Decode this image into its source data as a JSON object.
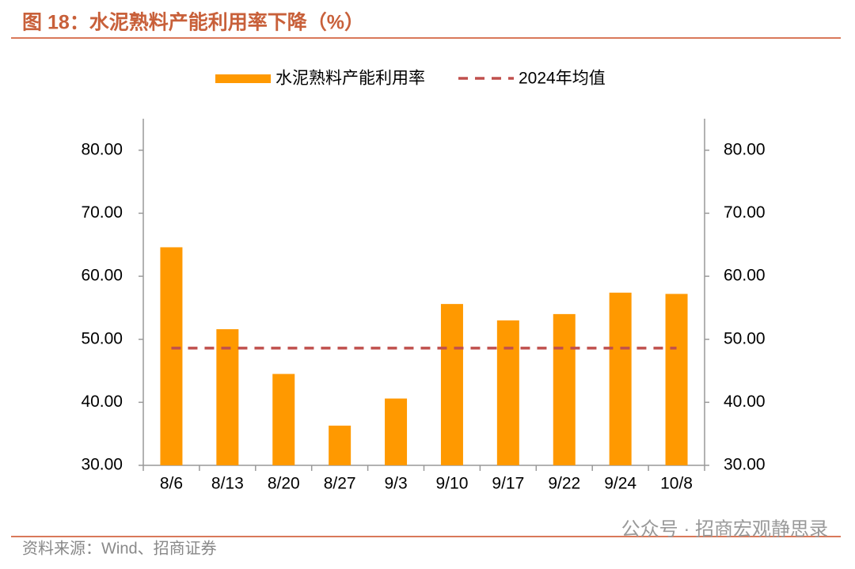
{
  "chart_data": {
    "type": "bar",
    "title": "图 18：水泥熟料产能利用率下降（%）",
    "source": "资料来源：Wind、招商证券",
    "watermark": "公众号 · 招商宏观静思录",
    "categories": [
      "8/6",
      "8/13",
      "8/20",
      "8/27",
      "9/3",
      "9/10",
      "9/17",
      "9/22",
      "9/24",
      "10/8"
    ],
    "series": [
      {
        "name": "水泥熟料产能利用率",
        "type": "bar",
        "color": "#ff9900",
        "values": [
          64.6,
          51.6,
          44.5,
          36.3,
          40.6,
          55.6,
          53.0,
          54.0,
          57.4,
          57.2
        ]
      },
      {
        "name": "2024年均值",
        "type": "line",
        "dashed": true,
        "color": "#c0504d",
        "values": [
          48.6,
          48.6,
          48.6,
          48.6,
          48.6,
          48.6,
          48.6,
          48.6,
          48.6,
          48.6
        ]
      }
    ],
    "ylim": [
      30,
      85
    ],
    "yticks": [
      {
        "value": 30,
        "label": "30.00"
      },
      {
        "value": 40,
        "label": "40.00"
      },
      {
        "value": 50,
        "label": "50.00"
      },
      {
        "value": 60,
        "label": "60.00"
      },
      {
        "value": 70,
        "label": "70.00"
      },
      {
        "value": 80,
        "label": "80.00"
      }
    ],
    "y2lim": [
      30,
      85
    ],
    "y2ticks": [
      {
        "value": 30,
        "label": "30.00"
      },
      {
        "value": 40,
        "label": "40.00"
      },
      {
        "value": 50,
        "label": "50.00"
      },
      {
        "value": 60,
        "label": "60.00"
      },
      {
        "value": 70,
        "label": "70.00"
      },
      {
        "value": 80,
        "label": "80.00"
      }
    ],
    "legend": "top",
    "grid": false
  }
}
